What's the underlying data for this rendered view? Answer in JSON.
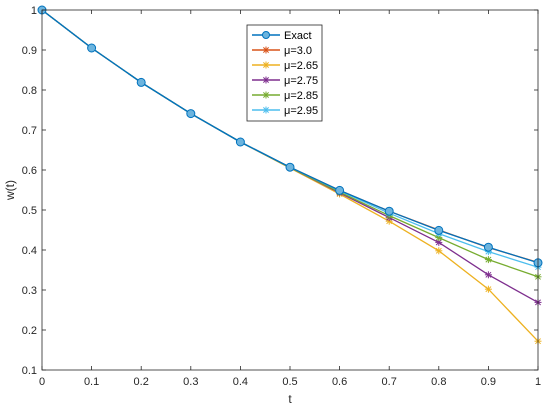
{
  "chart_data": {
    "type": "line",
    "title": "",
    "xlabel": "t",
    "ylabel": "w(t)",
    "xlim": [
      0,
      1
    ],
    "ylim": [
      0.1,
      1.0
    ],
    "xticks": [
      "0",
      "0.1",
      "0.2",
      "0.3",
      "0.4",
      "0.5",
      "0.6",
      "0.7",
      "0.8",
      "0.9",
      "1"
    ],
    "yticks": [
      "0.1",
      "0.2",
      "0.3",
      "0.4",
      "0.5",
      "0.6",
      "0.7",
      "0.8",
      "0.9",
      "1"
    ],
    "grid": false,
    "legend_position": "top-center",
    "x": [
      0,
      0.1,
      0.2,
      0.3,
      0.4,
      0.5,
      0.6,
      0.7,
      0.8,
      0.9,
      1.0
    ],
    "series": [
      {
        "name": "Exact",
        "color": "#0072BD",
        "marker": "circle",
        "values": [
          1.0,
          0.905,
          0.819,
          0.741,
          0.67,
          0.607,
          0.549,
          0.497,
          0.449,
          0.407,
          0.368
        ]
      },
      {
        "name": "μ=3.0",
        "color": "#D95319",
        "marker": "star",
        "values": [
          1.0,
          0.905,
          0.819,
          0.741,
          0.67,
          0.607,
          0.549,
          0.497,
          0.45,
          0.406,
          0.369
        ]
      },
      {
        "name": "μ=2.65",
        "color": "#EDB120",
        "marker": "star",
        "values": [
          1.0,
          0.905,
          0.819,
          0.741,
          0.67,
          0.605,
          0.54,
          0.472,
          0.398,
          0.302,
          0.172
        ]
      },
      {
        "name": "μ=2.75",
        "color": "#7E2F8E",
        "marker": "star",
        "values": [
          1.0,
          0.905,
          0.819,
          0.741,
          0.67,
          0.606,
          0.543,
          0.481,
          0.419,
          0.338,
          0.269
        ]
      },
      {
        "name": "μ=2.85",
        "color": "#77AC30",
        "marker": "star",
        "values": [
          1.0,
          0.905,
          0.819,
          0.741,
          0.67,
          0.606,
          0.545,
          0.486,
          0.431,
          0.376,
          0.333
        ]
      },
      {
        "name": "μ=2.95",
        "color": "#4DBEEE",
        "marker": "star",
        "values": [
          1.0,
          0.905,
          0.819,
          0.741,
          0.67,
          0.607,
          0.548,
          0.492,
          0.441,
          0.396,
          0.357
        ]
      }
    ]
  }
}
